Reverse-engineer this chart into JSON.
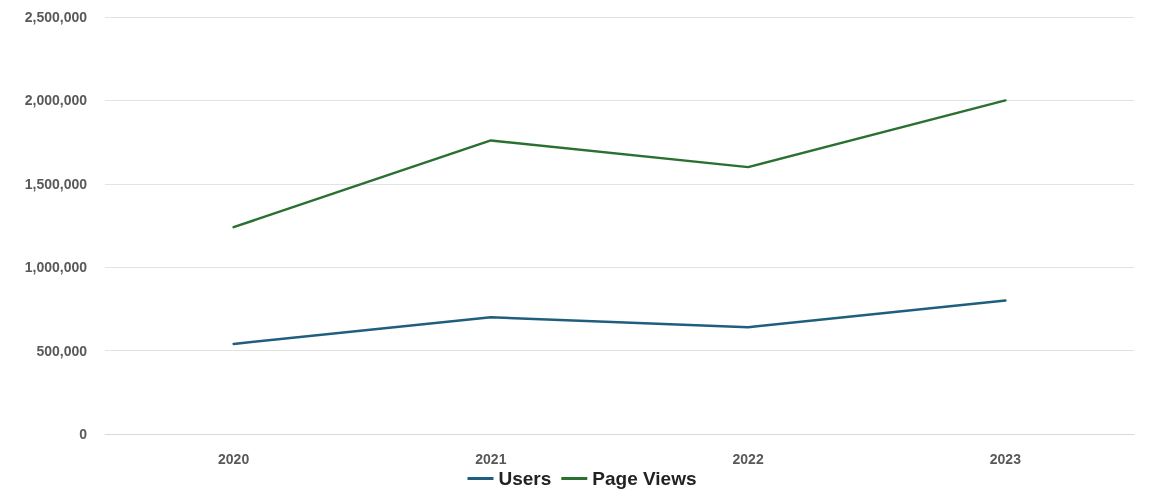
{
  "chart_data": {
    "type": "line",
    "categories": [
      "2020",
      "2021",
      "2022",
      "2023"
    ],
    "series": [
      {
        "name": "Users",
        "color": "#1f5e7e",
        "values": [
          540000,
          700000,
          640000,
          800000
        ]
      },
      {
        "name": "Page Views",
        "color": "#2a7030",
        "values": [
          1240000,
          1760000,
          1600000,
          2000000
        ]
      }
    ],
    "ylim": [
      0,
      2500000
    ],
    "yticks": [
      0,
      {
        "value": 500000,
        "label": "500,000"
      },
      {
        "value": 1000000,
        "label": "1,000,000"
      },
      {
        "value": 1500000,
        "label": "1,500,000"
      },
      {
        "value": 2000000,
        "label": "2,000,000"
      },
      {
        "value": 2500000,
        "label": "2,500,000"
      }
    ],
    "grid": "y",
    "legend": "bottom",
    "marker": "none",
    "line_style": "solid"
  }
}
